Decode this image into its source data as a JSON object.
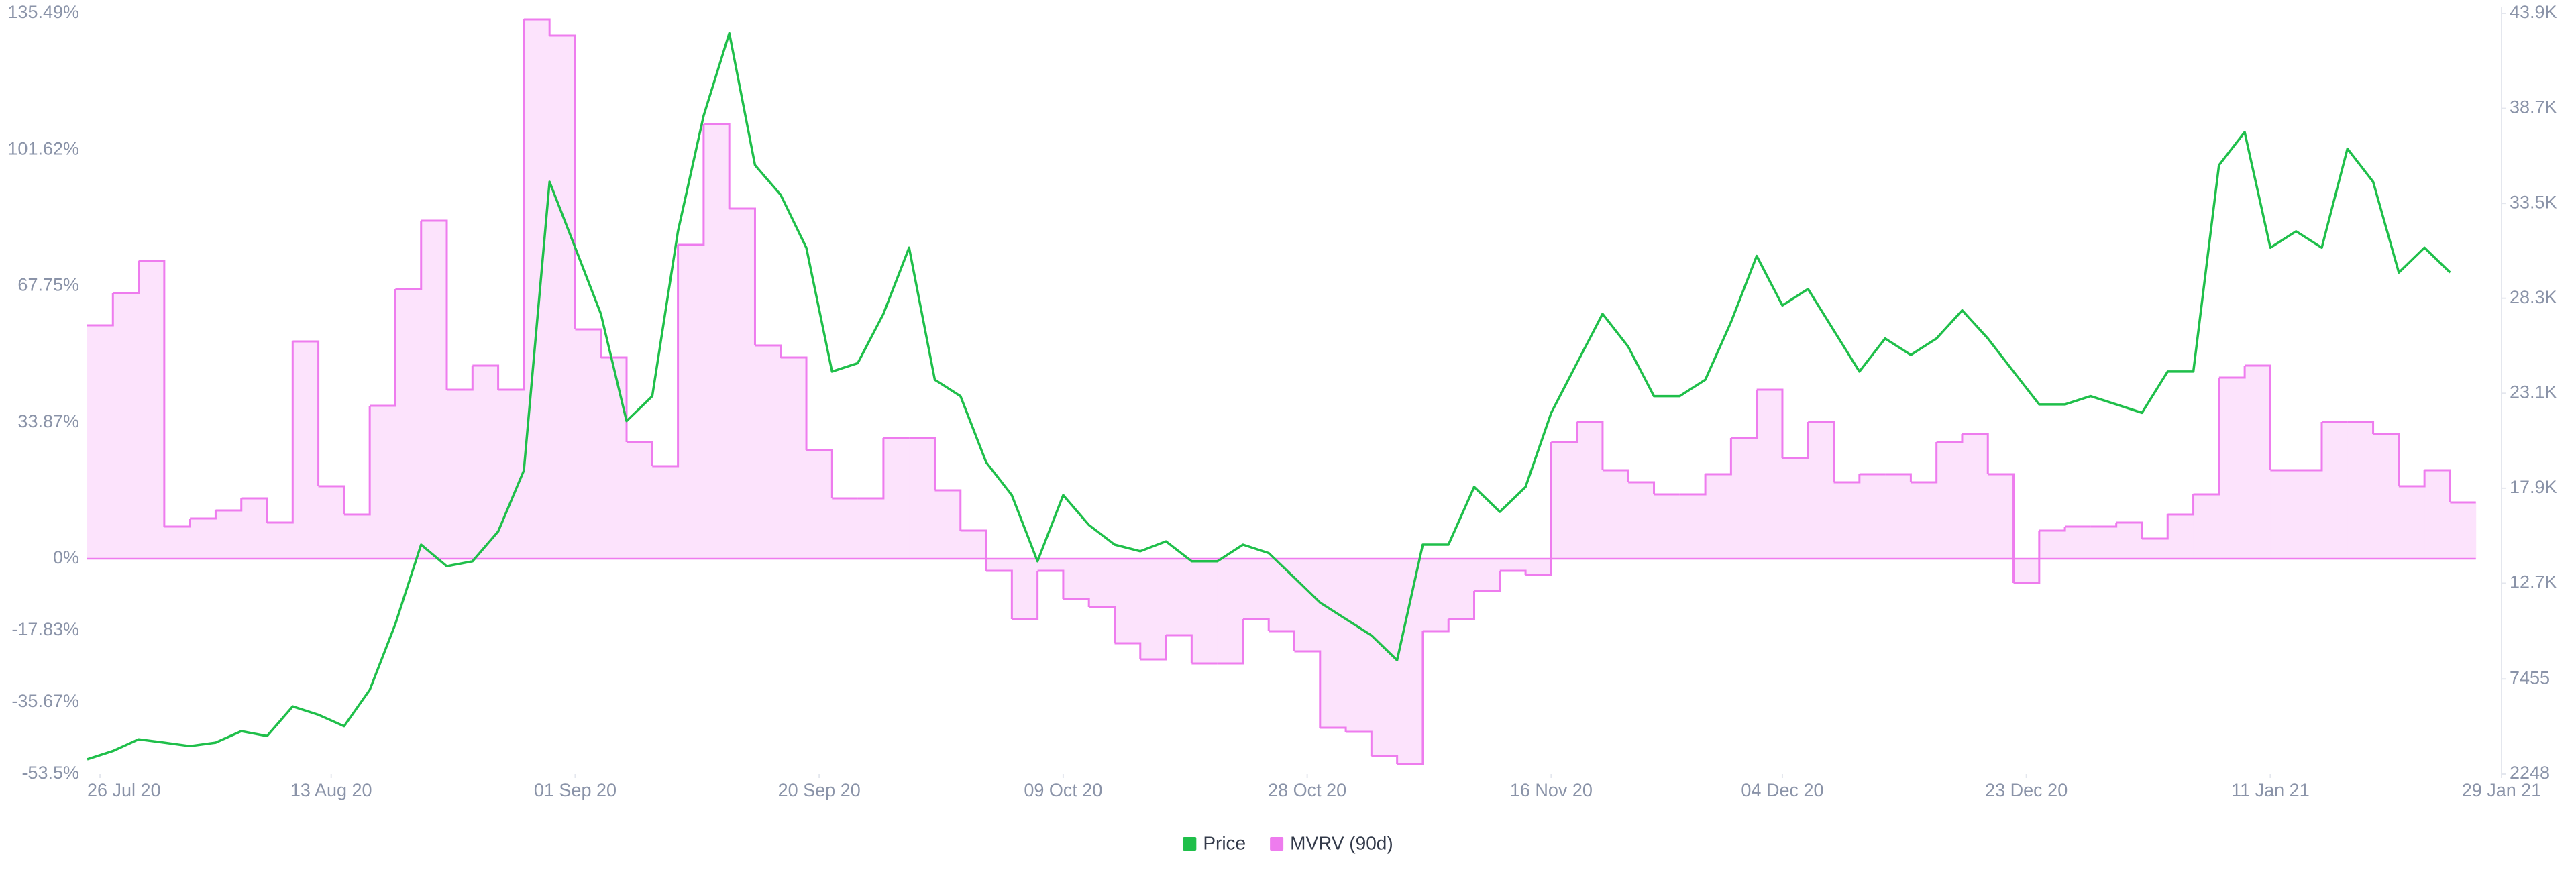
{
  "chart_data": {
    "type": "line",
    "x": [
      "2020-07-25",
      "2020-07-27",
      "2020-07-29",
      "2020-07-31",
      "2020-08-02",
      "2020-08-04",
      "2020-08-06",
      "2020-08-08",
      "2020-08-10",
      "2020-08-12",
      "2020-08-14",
      "2020-08-16",
      "2020-08-18",
      "2020-08-20",
      "2020-08-22",
      "2020-08-24",
      "2020-08-26",
      "2020-08-28",
      "2020-08-30",
      "2020-09-01",
      "2020-09-03",
      "2020-09-05",
      "2020-09-07",
      "2020-09-09",
      "2020-09-11",
      "2020-09-13",
      "2020-09-15",
      "2020-09-17",
      "2020-09-19",
      "2020-09-21",
      "2020-09-23",
      "2020-09-25",
      "2020-09-27",
      "2020-09-29",
      "2020-10-01",
      "2020-10-03",
      "2020-10-05",
      "2020-10-07",
      "2020-10-09",
      "2020-10-11",
      "2020-10-13",
      "2020-10-15",
      "2020-10-17",
      "2020-10-19",
      "2020-10-21",
      "2020-10-23",
      "2020-10-25",
      "2020-10-27",
      "2020-10-29",
      "2020-10-31",
      "2020-11-02",
      "2020-11-04",
      "2020-11-06",
      "2020-11-08",
      "2020-11-10",
      "2020-11-12",
      "2020-11-14",
      "2020-11-16",
      "2020-11-18",
      "2020-11-20",
      "2020-11-22",
      "2020-11-24",
      "2020-11-26",
      "2020-11-28",
      "2020-11-30",
      "2020-12-02",
      "2020-12-04",
      "2020-12-06",
      "2020-12-08",
      "2020-12-10",
      "2020-12-12",
      "2020-12-14",
      "2020-12-16",
      "2020-12-18",
      "2020-12-20",
      "2020-12-22",
      "2020-12-24",
      "2020-12-26",
      "2020-12-28",
      "2020-12-30",
      "2021-01-01",
      "2021-01-03",
      "2021-01-05",
      "2021-01-07",
      "2021-01-09",
      "2021-01-11",
      "2021-01-13",
      "2021-01-15",
      "2021-01-17",
      "2021-01-19",
      "2021-01-21",
      "2021-01-23",
      "2021-01-25"
    ],
    "xlim": [
      "2020-07-25",
      "2021-01-29"
    ],
    "xticks": [
      {
        "value": "2020-07-26",
        "label": "26 Jul 20"
      },
      {
        "value": "2020-08-13",
        "label": "13 Aug 20"
      },
      {
        "value": "2020-09-01",
        "label": "01 Sep 20"
      },
      {
        "value": "2020-09-20",
        "label": "20 Sep 20"
      },
      {
        "value": "2020-10-09",
        "label": "09 Oct 20"
      },
      {
        "value": "2020-10-28",
        "label": "28 Oct 20"
      },
      {
        "value": "2020-11-16",
        "label": "16 Nov 20"
      },
      {
        "value": "2020-12-04",
        "label": "04 Dec 20"
      },
      {
        "value": "2020-12-23",
        "label": "23 Dec 20"
      },
      {
        "value": "2021-01-11",
        "label": "11 Jan 21"
      },
      {
        "value": "2021-01-29",
        "label": "29 Jan 21"
      }
    ],
    "ylim": [
      -53.5,
      135.49
    ],
    "yticks": [
      {
        "value": -53.5,
        "label": "-53.5%"
      },
      {
        "value": -35.67,
        "label": "-35.67%"
      },
      {
        "value": -17.83,
        "label": "-17.83%"
      },
      {
        "value": 0,
        "label": "0%"
      },
      {
        "value": 33.87,
        "label": "33.87%"
      },
      {
        "value": 67.75,
        "label": "67.75%"
      },
      {
        "value": 101.62,
        "label": "101.62%"
      },
      {
        "value": 135.49,
        "label": "135.49%"
      }
    ],
    "y2lim": [
      2248,
      43900
    ],
    "y2ticks": [
      2248,
      7455,
      {
        "value": 12700,
        "label": "12.7K"
      },
      {
        "value": 17900,
        "label": "17.9K"
      },
      {
        "value": 23100,
        "label": "23.1K"
      },
      {
        "value": 28300,
        "label": "28.3K"
      },
      {
        "value": 33500,
        "label": "33.5K"
      },
      {
        "value": 38700,
        "label": "38.7K"
      },
      {
        "value": 43900,
        "label": "43.9K"
      }
    ],
    "grid": false,
    "legend": "bottom",
    "series": [
      {
        "name": "Price",
        "color": "#1fbf4a",
        "axis": "y2",
        "style": "line",
        "values": [
          3060,
          3510,
          4150,
          3970,
          3780,
          3970,
          4600,
          4330,
          5950,
          5500,
          4870,
          6860,
          10470,
          14810,
          13630,
          13900,
          15530,
          18870,
          34680,
          31070,
          27450,
          21580,
          22940,
          31970,
          38300,
          42820,
          35590,
          33960,
          31070,
          24290,
          24750,
          27450,
          31070,
          23840,
          22940,
          19320,
          17520,
          13900,
          17520,
          15890,
          14810,
          14450,
          14990,
          13900,
          13900,
          14810,
          14350,
          13000,
          11640,
          10740,
          9840,
          8480,
          14810,
          14810,
          17970,
          16610,
          17970,
          22030,
          24750,
          27450,
          25650,
          22940,
          22940,
          23840,
          27000,
          30620,
          27910,
          28810,
          26550,
          24290,
          26100,
          25200,
          26100,
          27640,
          26100,
          24290,
          22490,
          22490,
          22940,
          22490,
          22030,
          24290,
          24290,
          35590,
          37400,
          31070,
          31970,
          31070,
          36490,
          34680,
          29710,
          31070,
          29710
        ]
      },
      {
        "name": "MVRV (90d)",
        "color": "#ee7cee",
        "fill": "#fce3fc",
        "axis": "y",
        "style": "step-area",
        "values": [
          58,
          66,
          74,
          8,
          10,
          12,
          15,
          9,
          54,
          18,
          11,
          38,
          67,
          84,
          42,
          48,
          42,
          134,
          130,
          57,
          50,
          29,
          23,
          78,
          108,
          87,
          53,
          50,
          27,
          15,
          15,
          30,
          30,
          17,
          7,
          -3,
          -15,
          -3,
          -10,
          -12,
          -21,
          -25,
          -19,
          -26,
          -26,
          -15,
          -18,
          -23,
          -42,
          -43,
          -49,
          -51,
          -18,
          -15,
          -8,
          -3,
          -4,
          29,
          34,
          22,
          19,
          16,
          16,
          21,
          30,
          42,
          25,
          34,
          19,
          21,
          21,
          19,
          29,
          31,
          21,
          -6,
          7,
          8,
          8,
          9,
          5,
          11,
          16,
          45,
          48,
          22,
          22,
          34,
          34,
          31,
          18,
          22,
          14
        ]
      }
    ]
  }
}
